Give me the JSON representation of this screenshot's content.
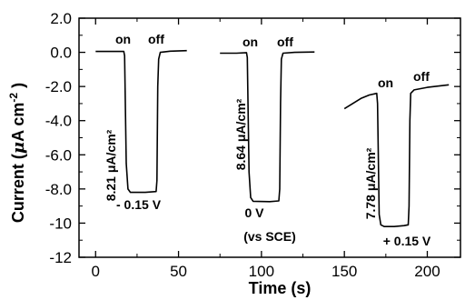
{
  "chart_data": {
    "type": "line",
    "xlabel": "Time (s)",
    "ylabel_parts": {
      "pre": "Current (",
      "mu": "μ",
      "mid": "A cm",
      "sup": "-2",
      "post": " )"
    },
    "xlim": [
      -10,
      220
    ],
    "ylim": [
      -12,
      2
    ],
    "xticks": [
      0,
      50,
      100,
      150,
      200
    ],
    "xtick_labels": [
      "0",
      "50",
      "100",
      "150",
      "200"
    ],
    "yticks": [
      2,
      0,
      -2,
      -4,
      -6,
      -8,
      -10,
      -12
    ],
    "ytick_labels": [
      "2.0",
      "0.0",
      "-2.0",
      "-4.0",
      "-6.0",
      "-8.0",
      "-10",
      "-12"
    ],
    "grid": false,
    "series": [
      {
        "values": [
          [
            0,
            0.05
          ],
          [
            10,
            0.05
          ],
          [
            17,
            0.05
          ],
          [
            17.5,
            -0.2
          ],
          [
            18.5,
            -6.5
          ],
          [
            19.5,
            -8.0
          ],
          [
            21,
            -8.2
          ],
          [
            30,
            -8.2
          ],
          [
            36.5,
            -8.15
          ],
          [
            37,
            -7.5
          ],
          [
            37.5,
            -2.0
          ],
          [
            38,
            -0.4
          ],
          [
            39,
            0.0
          ],
          [
            45,
            0.07
          ],
          [
            55,
            0.1
          ]
        ]
      },
      {
        "values": [
          [
            75,
            -0.05
          ],
          [
            85,
            -0.05
          ],
          [
            91,
            -0.02
          ],
          [
            91.5,
            -0.3
          ],
          [
            92.5,
            -7.0
          ],
          [
            93.5,
            -8.5
          ],
          [
            95,
            -8.72
          ],
          [
            105,
            -8.74
          ],
          [
            110.5,
            -8.7
          ],
          [
            111,
            -8.0
          ],
          [
            111.5,
            -3.0
          ],
          [
            112,
            -0.4
          ],
          [
            113,
            -0.05
          ],
          [
            120,
            0.0
          ],
          [
            132,
            0.02
          ]
        ]
      },
      {
        "values": [
          [
            150,
            -3.3
          ],
          [
            155,
            -3.0
          ],
          [
            160,
            -2.7
          ],
          [
            165,
            -2.5
          ],
          [
            169.5,
            -2.4
          ],
          [
            170,
            -3.0
          ],
          [
            171,
            -9.5
          ],
          [
            172,
            -10.1
          ],
          [
            174,
            -10.2
          ],
          [
            180,
            -10.2
          ],
          [
            186,
            -10.15
          ],
          [
            188.5,
            -10.1
          ],
          [
            189,
            -9.0
          ],
          [
            189.5,
            -4.0
          ],
          [
            190,
            -2.4
          ],
          [
            192,
            -2.2
          ],
          [
            200,
            -2.05
          ],
          [
            213,
            -1.9
          ]
        ]
      }
    ],
    "annotations": {
      "on_1": "on",
      "off_1": "off",
      "on_2": "on",
      "off_2": "off",
      "on_3": "on",
      "off_3": "off",
      "current_1": "8.21 μA/cm²",
      "current_2": "8.64 μA/cm²",
      "current_3": "7.78 μA/cm²",
      "bias_1": "- 0.15 V",
      "bias_2": "0 V",
      "bias_2_ref": "(vs SCE)",
      "bias_3": "+ 0.15 V"
    }
  }
}
